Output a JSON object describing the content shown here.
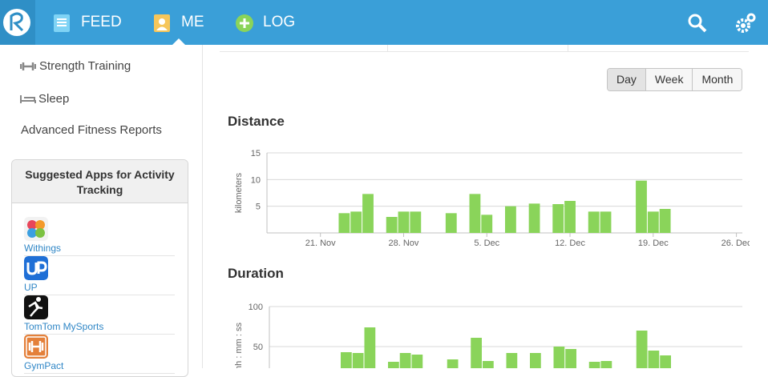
{
  "nav": {
    "items": [
      "FEED",
      "ME",
      "LOG"
    ]
  },
  "sidebar": {
    "links": [
      "Strength Training",
      "Sleep",
      "Advanced Fitness Reports"
    ],
    "apps_title": "Suggested Apps for Activity Tracking",
    "apps": [
      "Withings",
      "UP",
      "TomTom MySports",
      "GymPact"
    ]
  },
  "range_buttons": [
    "Day",
    "Week",
    "Month"
  ],
  "chart_data": [
    {
      "type": "bar",
      "title": "Distance",
      "y_label": "kilometers",
      "categories": [
        null,
        null,
        null,
        null,
        "21. Nov",
        null,
        null,
        null,
        null,
        null,
        null,
        "28. Nov",
        null,
        null,
        null,
        null,
        null,
        null,
        "5. Dec",
        null,
        null,
        null,
        null,
        null,
        null,
        "12. Dec",
        null,
        null,
        null,
        null,
        null,
        null,
        "19. Dec",
        null,
        null,
        null,
        null,
        null,
        null,
        "26. Dec"
      ],
      "values": [
        null,
        null,
        null,
        null,
        null,
        null,
        3.7,
        4.0,
        7.3,
        null,
        3.0,
        4.0,
        4.0,
        null,
        null,
        3.7,
        null,
        7.3,
        3.4,
        null,
        5.0,
        null,
        5.5,
        null,
        5.4,
        6.0,
        null,
        4.0,
        4.0,
        null,
        null,
        9.8,
        4.0,
        4.5,
        null,
        null,
        null,
        null,
        null,
        null
      ],
      "color": "#8ad45a",
      "ylim": [
        0,
        15
      ],
      "yticks": [
        5,
        10,
        15
      ],
      "grid": true
    },
    {
      "type": "bar",
      "title": "Duration",
      "y_label": "hh : mm : ss",
      "values": [
        null,
        null,
        null,
        null,
        null,
        null,
        43,
        42,
        74,
        null,
        31,
        42,
        40,
        null,
        null,
        34,
        null,
        61,
        32,
        null,
        42,
        null,
        42,
        null,
        50,
        47,
        null,
        31,
        32,
        null,
        null,
        70,
        45,
        39,
        null,
        null,
        null,
        null,
        null,
        null
      ],
      "color": "#8ad45a",
      "ylim": [
        0,
        100
      ],
      "yticks": [
        50,
        100
      ],
      "grid": true
    }
  ]
}
